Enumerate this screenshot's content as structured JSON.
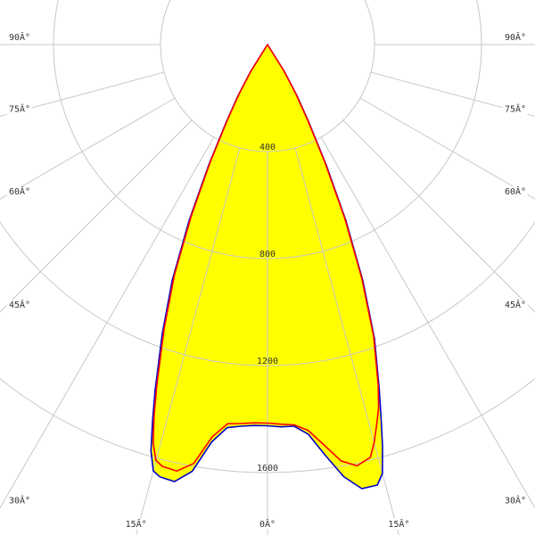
{
  "chart_data": {
    "type": "polar",
    "x": [
      -35,
      -32,
      -30,
      -28,
      -26,
      -24,
      -22,
      -20,
      -18,
      -17,
      -16,
      -15,
      -14,
      -12,
      -10,
      -8,
      -6,
      -4,
      -2,
      0,
      2,
      4,
      6,
      8,
      10,
      12,
      14,
      15,
      16,
      17,
      18,
      20,
      22,
      24,
      26,
      28,
      30,
      32,
      35
    ],
    "series": [
      {
        "color": "#0000cc",
        "fill": "#ffff00",
        "values": [
          0,
          120,
          220,
          330,
          500,
          720,
          950,
          1150,
          1360,
          1470,
          1580,
          1650,
          1665,
          1670,
          1620,
          1500,
          1440,
          1430,
          1425,
          1425,
          1430,
          1430,
          1465,
          1550,
          1640,
          1697,
          1697,
          1660,
          1560,
          1450,
          1350,
          1170,
          950,
          720,
          500,
          330,
          220,
          120,
          0
        ]
      },
      {
        "color": "#ff0000",
        "values": [
          0,
          115,
          210,
          320,
          490,
          700,
          930,
          1130,
          1340,
          1450,
          1550,
          1610,
          1625,
          1630,
          1590,
          1480,
          1425,
          1420,
          1415,
          1415,
          1420,
          1425,
          1450,
          1510,
          1580,
          1610,
          1590,
          1540,
          1480,
          1420,
          1340,
          1160,
          940,
          710,
          490,
          320,
          210,
          115,
          0
        ]
      }
    ],
    "rlim": [
      0,
      1600
    ],
    "rticks": [
      400,
      800,
      1200,
      1600
    ],
    "angle_ticks": [
      {
        "value": -90,
        "label": "90Â°"
      },
      {
        "value": -75,
        "label": "75Â°"
      },
      {
        "value": -60,
        "label": "60Â°"
      },
      {
        "value": -45,
        "label": "45Â°"
      },
      {
        "value": -30,
        "label": "30Â°"
      },
      {
        "value": -15,
        "label": "15Â°"
      },
      {
        "value": 0,
        "label": "0Â°"
      },
      {
        "value": 15,
        "label": "15Â°"
      },
      {
        "value": 30,
        "label": "30Â°"
      },
      {
        "value": 45,
        "label": "45Â°"
      },
      {
        "value": 60,
        "label": "60Â°"
      },
      {
        "value": 75,
        "label": "75Â°"
      },
      {
        "value": 90,
        "label": "90Â°"
      }
    ],
    "grid": true
  }
}
